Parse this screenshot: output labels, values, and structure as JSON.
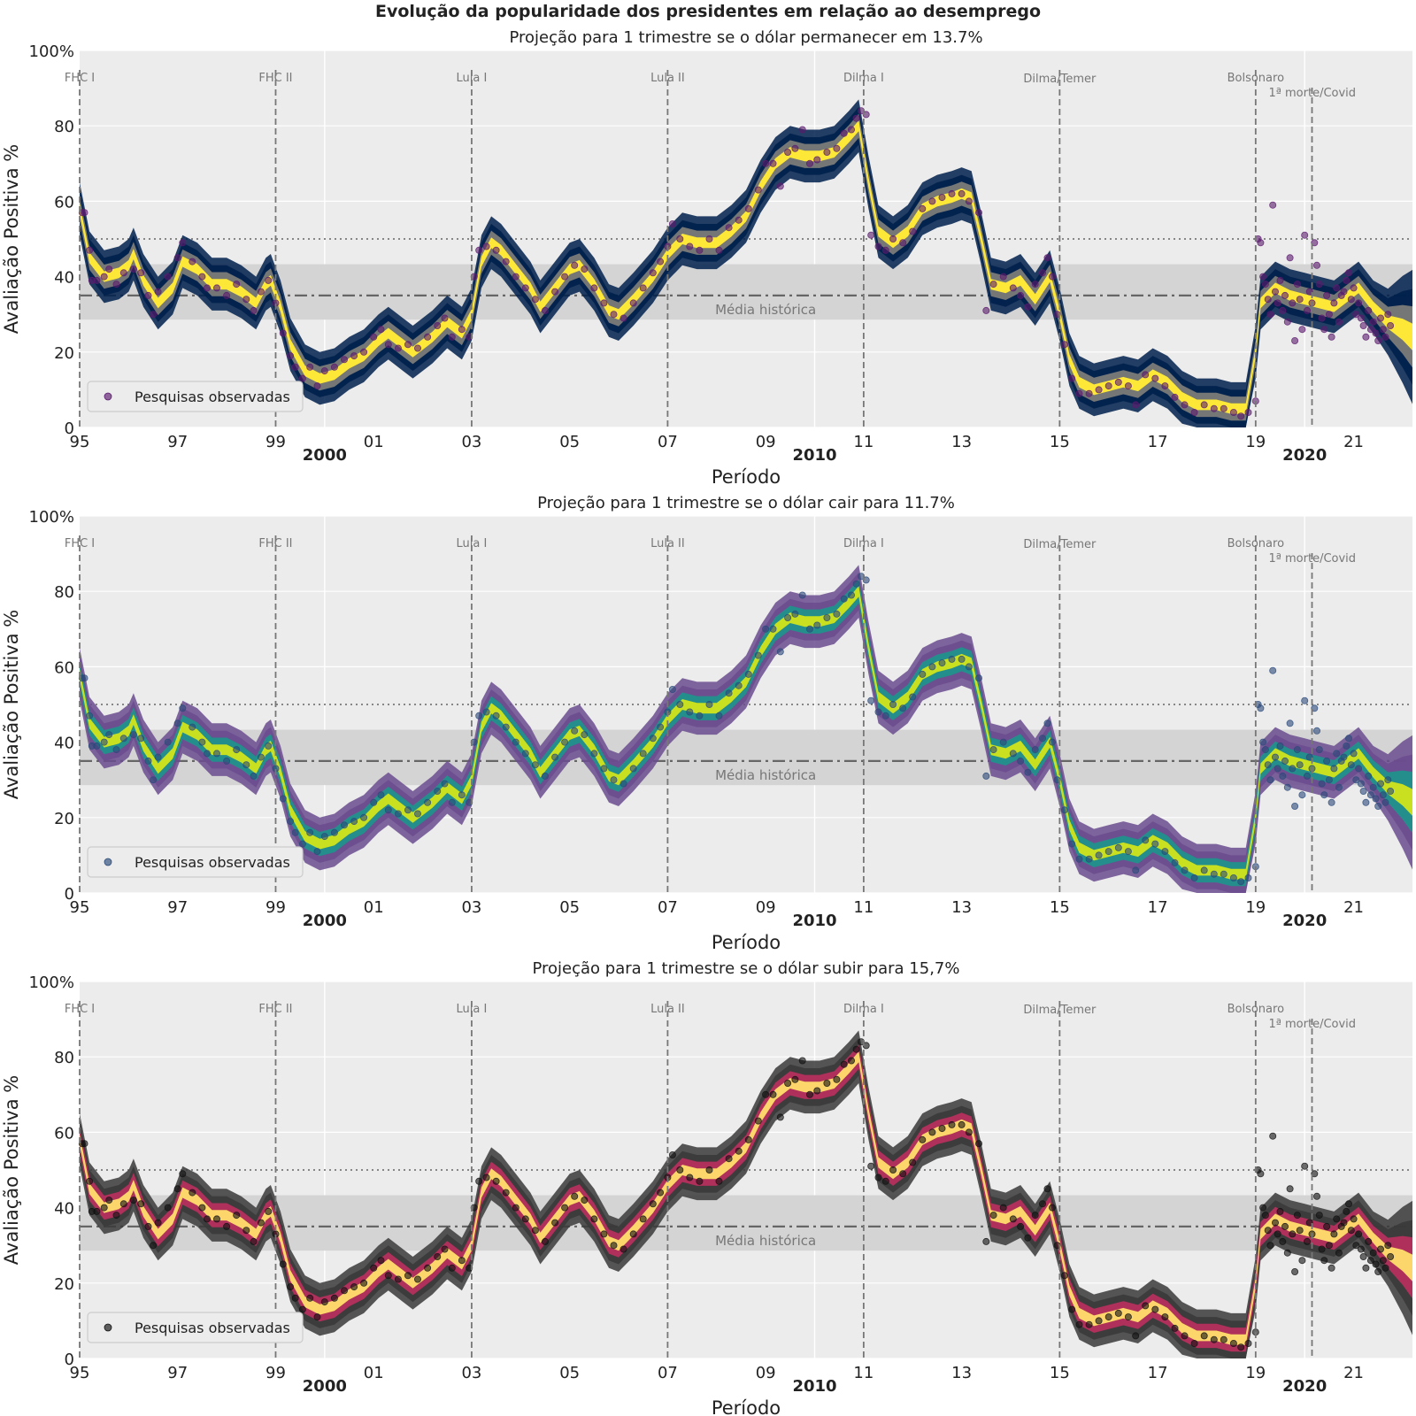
{
  "figure": {
    "suptitle": "Evolução da popularidade dos presidentes em relação ao desemprego"
  },
  "chart_data": [
    {
      "type": "line",
      "title": "Projeção para 1 trimestre se o dólar permanecer em 13.7%",
      "xlabel": "Período",
      "ylabel": "Avaliação Positiva %",
      "colormap": "cividis",
      "colors": {
        "inner": "#fde838",
        "mid": "#7b7b78",
        "outer": "#00204c",
        "points": "#5b1a6e"
      },
      "legend": {
        "label": "Pesquisas observadas",
        "placement": "lower-left"
      }
    },
    {
      "type": "line",
      "title": "Projeção para 1 trimestre se o dólar cair para 11.7%",
      "xlabel": "Período",
      "ylabel": "Avaliação Positiva %",
      "colormap": "viridis",
      "colors": {
        "inner": "#c8e020",
        "mid": "#21918c",
        "outer": "#6b4c8f",
        "points": "#2b4a7a"
      },
      "legend": {
        "label": "Pesquisas observadas",
        "placement": "lower-left"
      }
    },
    {
      "type": "line",
      "title": "Projeção para 1 trimestre se o dólar subir para 15,7%",
      "xlabel": "Período",
      "ylabel": "Avaliação Positiva %",
      "colormap": "inferno",
      "colors": {
        "inner": "#fcd56b",
        "mid": "#b52f5c",
        "outer": "#3a3a3a",
        "points": "#111111"
      },
      "legend": {
        "label": "Pesquisas observadas",
        "placement": "lower-left"
      }
    }
  ],
  "shared": {
    "xlim": [
      1995,
      2022.2
    ],
    "ylim": [
      0,
      100
    ],
    "y_ticks": [
      {
        "v": 0,
        "label": "0"
      },
      {
        "v": 20,
        "label": "20"
      },
      {
        "v": 40,
        "label": "40"
      },
      {
        "v": 60,
        "label": "60"
      },
      {
        "v": 80,
        "label": "80"
      },
      {
        "v": 100,
        "label": "100%"
      }
    ],
    "x_minor_ticks": [
      {
        "v": 1995,
        "label": "95"
      },
      {
        "v": 1997,
        "label": "97"
      },
      {
        "v": 1999,
        "label": "99"
      },
      {
        "v": 2001,
        "label": "01"
      },
      {
        "v": 2003,
        "label": "03"
      },
      {
        "v": 2005,
        "label": "05"
      },
      {
        "v": 2007,
        "label": "07"
      },
      {
        "v": 2009,
        "label": "09"
      },
      {
        "v": 2011,
        "label": "11"
      },
      {
        "v": 2013,
        "label": "13"
      },
      {
        "v": 2015,
        "label": "15"
      },
      {
        "v": 2017,
        "label": "17"
      },
      {
        "v": 2019,
        "label": "19"
      },
      {
        "v": 2021,
        "label": "21"
      }
    ],
    "x_major_ticks": [
      {
        "v": 2000,
        "label": "2000"
      },
      {
        "v": 2010,
        "label": "2010"
      },
      {
        "v": 2020,
        "label": "2020"
      }
    ],
    "events": [
      {
        "x": 1995.0,
        "label": "FHC I"
      },
      {
        "x": 1999.0,
        "label": "FHC II"
      },
      {
        "x": 2003.0,
        "label": "Lula I"
      },
      {
        "x": 2007.0,
        "label": "Lula II"
      },
      {
        "x": 2011.0,
        "label": "Dilma I"
      },
      {
        "x": 2015.0,
        "label": "Dilma/Temer"
      },
      {
        "x": 2019.0,
        "label": "Bolsonaro"
      },
      {
        "x": 2020.15,
        "label": "1ª morte/Covid"
      }
    ],
    "historical_mean": {
      "label": "Média histórica",
      "value": 35,
      "band": [
        28.6,
        43.3
      ]
    },
    "reference_line": 50,
    "series_median": [
      [
        1995.0,
        58
      ],
      [
        1995.2,
        45
      ],
      [
        1995.5,
        40
      ],
      [
        1995.8,
        41
      ],
      [
        1996.0,
        43
      ],
      [
        1996.1,
        46
      ],
      [
        1996.3,
        39
      ],
      [
        1996.6,
        33
      ],
      [
        1996.9,
        37
      ],
      [
        1997.1,
        44
      ],
      [
        1997.4,
        42
      ],
      [
        1997.7,
        38
      ],
      [
        1998.0,
        38
      ],
      [
        1998.3,
        36
      ],
      [
        1998.6,
        33
      ],
      [
        1998.8,
        38
      ],
      [
        1998.9,
        39
      ],
      [
        1999.1,
        32
      ],
      [
        1999.3,
        22
      ],
      [
        1999.6,
        15
      ],
      [
        1999.9,
        13
      ],
      [
        2000.2,
        14
      ],
      [
        2000.5,
        17
      ],
      [
        2000.8,
        19
      ],
      [
        2001.1,
        23
      ],
      [
        2001.3,
        25
      ],
      [
        2001.6,
        22
      ],
      [
        2001.8,
        20
      ],
      [
        2002.2,
        24
      ],
      [
        2002.5,
        28
      ],
      [
        2002.8,
        25
      ],
      [
        2003.0,
        30
      ],
      [
        2003.2,
        44
      ],
      [
        2003.4,
        49
      ],
      [
        2003.6,
        47
      ],
      [
        2003.9,
        42
      ],
      [
        2004.2,
        37
      ],
      [
        2004.4,
        32
      ],
      [
        2004.7,
        37
      ],
      [
        2005.0,
        42
      ],
      [
        2005.2,
        43
      ],
      [
        2005.5,
        38
      ],
      [
        2005.8,
        31
      ],
      [
        2006.0,
        30
      ],
      [
        2006.3,
        34
      ],
      [
        2006.7,
        40
      ],
      [
        2007.0,
        46
      ],
      [
        2007.3,
        50
      ],
      [
        2007.6,
        49
      ],
      [
        2008.0,
        49
      ],
      [
        2008.3,
        52
      ],
      [
        2008.6,
        56
      ],
      [
        2008.9,
        64
      ],
      [
        2009.2,
        70
      ],
      [
        2009.5,
        73
      ],
      [
        2009.8,
        72
      ],
      [
        2010.1,
        72
      ],
      [
        2010.4,
        73
      ],
      [
        2010.7,
        77
      ],
      [
        2010.9,
        80
      ],
      [
        2011.1,
        65
      ],
      [
        2011.3,
        52
      ],
      [
        2011.6,
        49
      ],
      [
        2011.9,
        52
      ],
      [
        2012.2,
        58
      ],
      [
        2012.5,
        60
      ],
      [
        2012.8,
        61
      ],
      [
        2013.0,
        62
      ],
      [
        2013.2,
        61
      ],
      [
        2013.4,
        50
      ],
      [
        2013.6,
        38
      ],
      [
        2013.9,
        37
      ],
      [
        2014.2,
        39
      ],
      [
        2014.5,
        34
      ],
      [
        2014.8,
        40
      ],
      [
        2015.0,
        30
      ],
      [
        2015.2,
        18
      ],
      [
        2015.4,
        12
      ],
      [
        2015.7,
        10
      ],
      [
        2016.0,
        11
      ],
      [
        2016.3,
        12
      ],
      [
        2016.6,
        11
      ],
      [
        2016.9,
        14
      ],
      [
        2017.2,
        12
      ],
      [
        2017.5,
        8
      ],
      [
        2017.8,
        6
      ],
      [
        2018.2,
        6
      ],
      [
        2018.5,
        5
      ],
      [
        2018.8,
        5
      ],
      [
        2019.0,
        20
      ],
      [
        2019.1,
        33
      ],
      [
        2019.4,
        37
      ],
      [
        2019.7,
        35
      ],
      [
        2020.0,
        34
      ],
      [
        2020.3,
        33
      ],
      [
        2020.6,
        32
      ],
      [
        2020.9,
        35
      ],
      [
        2021.1,
        37
      ],
      [
        2021.4,
        32
      ],
      [
        2021.7,
        28
      ],
      [
        2022.0,
        26
      ],
      [
        2022.2,
        24
      ]
    ],
    "observed_polls": [
      [
        1995.05,
        57
      ],
      [
        1995.1,
        57
      ],
      [
        1995.2,
        47
      ],
      [
        1995.25,
        39
      ],
      [
        1995.35,
        39
      ],
      [
        1995.5,
        40
      ],
      [
        1995.6,
        42
      ],
      [
        1995.75,
        38
      ],
      [
        1995.9,
        41
      ],
      [
        1996.1,
        42
      ],
      [
        1996.25,
        41
      ],
      [
        1996.4,
        35
      ],
      [
        1996.5,
        30
      ],
      [
        1996.6,
        36
      ],
      [
        1996.8,
        40
      ],
      [
        1997.0,
        45
      ],
      [
        1997.1,
        49
      ],
      [
        1997.3,
        44
      ],
      [
        1997.5,
        40
      ],
      [
        1997.6,
        37
      ],
      [
        1997.8,
        37
      ],
      [
        1998.0,
        35
      ],
      [
        1998.2,
        38
      ],
      [
        1998.4,
        34
      ],
      [
        1998.55,
        31
      ],
      [
        1998.7,
        36
      ],
      [
        1998.85,
        39
      ],
      [
        1999.0,
        33
      ],
      [
        1999.15,
        25
      ],
      [
        1999.3,
        19
      ],
      [
        1999.4,
        16
      ],
      [
        1999.55,
        13
      ],
      [
        1999.7,
        16
      ],
      [
        1999.85,
        11
      ],
      [
        2000.0,
        15
      ],
      [
        2000.2,
        16
      ],
      [
        2000.4,
        18
      ],
      [
        2000.6,
        19
      ],
      [
        2000.8,
        20
      ],
      [
        2001.0,
        24
      ],
      [
        2001.15,
        26
      ],
      [
        2001.3,
        22
      ],
      [
        2001.5,
        21
      ],
      [
        2001.7,
        22
      ],
      [
        2001.9,
        21
      ],
      [
        2002.1,
        24
      ],
      [
        2002.3,
        27
      ],
      [
        2002.45,
        29
      ],
      [
        2002.6,
        24
      ],
      [
        2002.8,
        26
      ],
      [
        2002.95,
        24
      ],
      [
        2003.05,
        40
      ],
      [
        2003.15,
        47
      ],
      [
        2003.3,
        48
      ],
      [
        2003.5,
        47
      ],
      [
        2003.7,
        44
      ],
      [
        2003.9,
        40
      ],
      [
        2004.1,
        37
      ],
      [
        2004.3,
        34
      ],
      [
        2004.5,
        31
      ],
      [
        2004.7,
        36
      ],
      [
        2004.9,
        40
      ],
      [
        2005.1,
        43
      ],
      [
        2005.3,
        42
      ],
      [
        2005.5,
        37
      ],
      [
        2005.7,
        33
      ],
      [
        2005.9,
        30
      ],
      [
        2006.1,
        29
      ],
      [
        2006.3,
        33
      ],
      [
        2006.5,
        37
      ],
      [
        2006.7,
        41
      ],
      [
        2006.85,
        44
      ],
      [
        2007.0,
        48
      ],
      [
        2007.1,
        54
      ],
      [
        2007.25,
        50
      ],
      [
        2007.45,
        48
      ],
      [
        2007.65,
        47
      ],
      [
        2007.85,
        50
      ],
      [
        2008.05,
        47
      ],
      [
        2008.25,
        53
      ],
      [
        2008.45,
        55
      ],
      [
        2008.65,
        58
      ],
      [
        2008.85,
        63
      ],
      [
        2009.0,
        70
      ],
      [
        2009.15,
        70
      ],
      [
        2009.3,
        64
      ],
      [
        2009.45,
        73
      ],
      [
        2009.6,
        74
      ],
      [
        2009.75,
        79
      ],
      [
        2009.9,
        70
      ],
      [
        2010.05,
        71
      ],
      [
        2010.25,
        73
      ],
      [
        2010.45,
        74
      ],
      [
        2010.6,
        78
      ],
      [
        2010.75,
        79
      ],
      [
        2010.85,
        82
      ],
      [
        2010.95,
        84
      ],
      [
        2011.05,
        83
      ],
      [
        2011.15,
        51
      ],
      [
        2011.3,
        48
      ],
      [
        2011.45,
        47
      ],
      [
        2011.6,
        50
      ],
      [
        2011.8,
        49
      ],
      [
        2012.0,
        52
      ],
      [
        2012.2,
        58
      ],
      [
        2012.4,
        60
      ],
      [
        2012.6,
        61
      ],
      [
        2012.8,
        62
      ],
      [
        2013.0,
        62
      ],
      [
        2013.15,
        60
      ],
      [
        2013.35,
        57
      ],
      [
        2013.5,
        31
      ],
      [
        2013.65,
        38
      ],
      [
        2013.85,
        40
      ],
      [
        2014.05,
        37
      ],
      [
        2014.2,
        35
      ],
      [
        2014.35,
        32
      ],
      [
        2014.5,
        38
      ],
      [
        2014.65,
        41
      ],
      [
        2014.75,
        45
      ],
      [
        2014.85,
        40
      ],
      [
        2014.95,
        30
      ],
      [
        2015.1,
        22
      ],
      [
        2015.25,
        13
      ],
      [
        2015.4,
        9
      ],
      [
        2015.6,
        9
      ],
      [
        2015.8,
        10
      ],
      [
        2016.0,
        11
      ],
      [
        2016.2,
        12
      ],
      [
        2016.4,
        11
      ],
      [
        2016.55,
        6
      ],
      [
        2016.75,
        14
      ],
      [
        2016.95,
        13
      ],
      [
        2017.15,
        11
      ],
      [
        2017.35,
        8
      ],
      [
        2017.55,
        6
      ],
      [
        2017.75,
        4
      ],
      [
        2017.95,
        6
      ],
      [
        2018.15,
        5
      ],
      [
        2018.35,
        5
      ],
      [
        2018.55,
        4
      ],
      [
        2018.7,
        3
      ],
      [
        2018.85,
        4
      ],
      [
        2019.0,
        7
      ],
      [
        2019.05,
        50
      ],
      [
        2019.1,
        49
      ],
      [
        2019.15,
        40
      ],
      [
        2019.2,
        38
      ],
      [
        2019.25,
        34
      ],
      [
        2019.3,
        30
      ],
      [
        2019.35,
        59
      ],
      [
        2019.4,
        36
      ],
      [
        2019.45,
        33
      ],
      [
        2019.5,
        39
      ],
      [
        2019.55,
        31
      ],
      [
        2019.6,
        35
      ],
      [
        2019.65,
        28
      ],
      [
        2019.7,
        45
      ],
      [
        2019.75,
        33
      ],
      [
        2019.8,
        23
      ],
      [
        2019.85,
        38
      ],
      [
        2019.9,
        34
      ],
      [
        2019.95,
        26
      ],
      [
        2020.0,
        51
      ],
      [
        2020.05,
        31
      ],
      [
        2020.1,
        36
      ],
      [
        2020.15,
        33
      ],
      [
        2020.2,
        49
      ],
      [
        2020.25,
        43
      ],
      [
        2020.3,
        38
      ],
      [
        2020.35,
        29
      ],
      [
        2020.4,
        26
      ],
      [
        2020.45,
        35
      ],
      [
        2020.5,
        30
      ],
      [
        2020.55,
        24
      ],
      [
        2020.6,
        33
      ],
      [
        2020.65,
        37
      ],
      [
        2020.7,
        28
      ],
      [
        2020.75,
        35
      ],
      [
        2020.8,
        36
      ],
      [
        2020.85,
        39
      ],
      [
        2020.9,
        41
      ],
      [
        2020.95,
        34
      ],
      [
        2021.0,
        37
      ],
      [
        2021.05,
        30
      ],
      [
        2021.1,
        33
      ],
      [
        2021.15,
        29
      ],
      [
        2021.2,
        27
      ],
      [
        2021.25,
        24
      ],
      [
        2021.3,
        31
      ],
      [
        2021.35,
        26
      ],
      [
        2021.4,
        28
      ],
      [
        2021.45,
        25
      ],
      [
        2021.5,
        23
      ],
      [
        2021.55,
        29
      ],
      [
        2021.6,
        26
      ],
      [
        2021.65,
        24
      ],
      [
        2021.7,
        30
      ],
      [
        2021.75,
        27
      ]
    ]
  }
}
